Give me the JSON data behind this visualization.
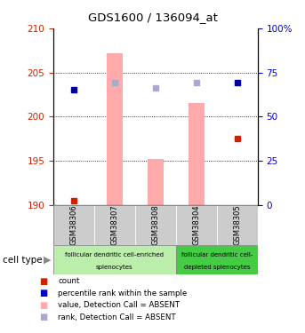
{
  "title": "GDS1600 / 136094_at",
  "samples": [
    "GSM38306",
    "GSM38307",
    "GSM38308",
    "GSM38304",
    "GSM38305"
  ],
  "left_ylim": [
    190,
    210
  ],
  "right_ylim": [
    0,
    100
  ],
  "left_yticks": [
    190,
    195,
    200,
    205,
    210
  ],
  "right_yticks": [
    0,
    25,
    50,
    75,
    100
  ],
  "right_yticklabels": [
    "0",
    "25",
    "50",
    "75",
    "100%"
  ],
  "count_values": [
    190.5,
    null,
    null,
    null,
    197.5
  ],
  "rank_values_left": [
    203.0,
    203.8,
    203.2,
    203.8,
    203.8
  ],
  "absent_value_tops": [
    null,
    207.2,
    195.2,
    201.5,
    null
  ],
  "absent_rank_dots": [
    null,
    true,
    true,
    true,
    null
  ],
  "present_rank_dots": [
    true,
    null,
    null,
    null,
    true
  ],
  "bar_bottom": 190,
  "group1_indices": [
    0,
    1,
    2
  ],
  "group2_indices": [
    3,
    4
  ],
  "group1_label_line1": "follicular dendritic cell-enriched",
  "group1_label_line2": "splenocytes",
  "group2_label_line1": "follicular dendritic cell-",
  "group2_label_line2": "depleted splenocytes",
  "cell_type_label": "cell type",
  "bar_color_absent_value": "#ffaaaa",
  "dot_color_count": "#cc2200",
  "dot_color_rank_present": "#000099",
  "dot_color_rank_absent": "#aaaacc",
  "group1_bg": "#bbeeaa",
  "group2_bg": "#44cc44",
  "sample_bg": "#cccccc",
  "tick_color_left": "#cc2200",
  "tick_color_right": "#0000cc",
  "legend_items": [
    {
      "label": "count",
      "color": "#cc2200",
      "marker": "s"
    },
    {
      "label": "percentile rank within the sample",
      "color": "#0000cc",
      "marker": "s"
    },
    {
      "label": "value, Detection Call = ABSENT",
      "color": "#ffaaaa",
      "marker": "s"
    },
    {
      "label": "rank, Detection Call = ABSENT",
      "color": "#aaaacc",
      "marker": "s"
    }
  ]
}
